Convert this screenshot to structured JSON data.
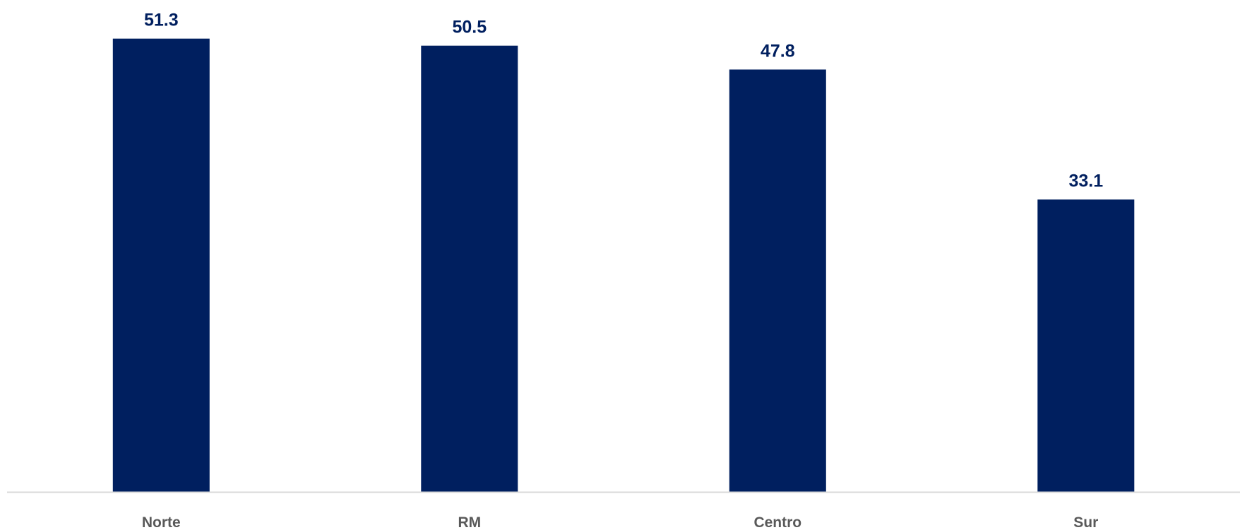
{
  "chart_data": {
    "type": "bar",
    "categories": [
      "Norte",
      "RM",
      "Centro",
      "Sur"
    ],
    "values": [
      51.3,
      50.5,
      47.8,
      33.1
    ],
    "value_labels": [
      "51.3",
      "50.5",
      "47.8",
      "33.1"
    ],
    "title": "",
    "xlabel": "",
    "ylabel": "",
    "ylim": [
      0,
      52
    ],
    "grid": false,
    "legend": "none",
    "colors": {
      "bar": "#001F5F",
      "value_label": "#001F5F",
      "tick_label": "#595959",
      "axis_line": "#D9D9D9"
    }
  }
}
